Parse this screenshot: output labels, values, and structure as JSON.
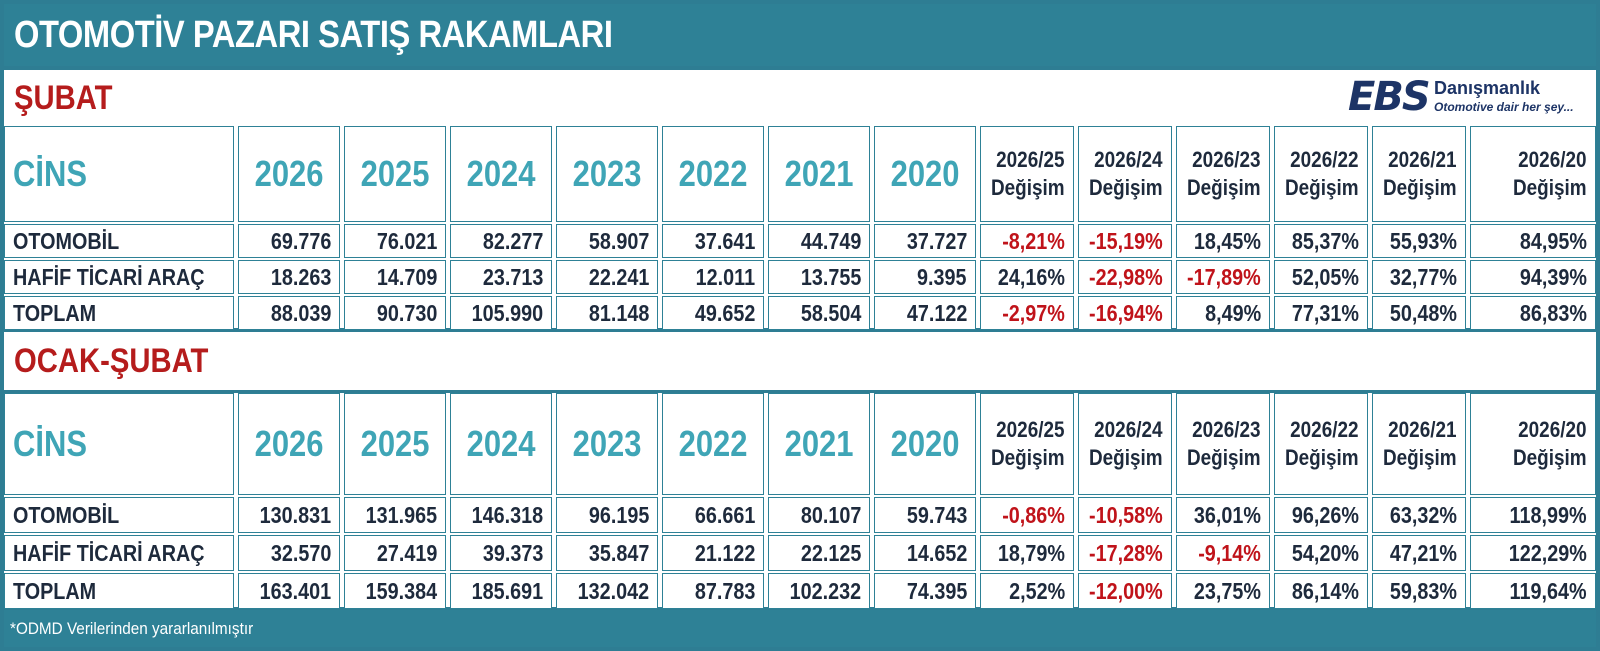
{
  "title": "OTOMOTİV PAZARI SATIŞ RAKAMLARI",
  "logo": {
    "mark": "EBS",
    "name": "Danışmanlık",
    "tagline": "Otomotive dair her şey..."
  },
  "colors": {
    "teal": "#2e8196",
    "header_text": "#3fa5b6",
    "negative": "#c0131a",
    "section_title": "#b51c1c",
    "dark_text": "#1e2a3c"
  },
  "sections": [
    {
      "label": "ŞUBAT",
      "header": {
        "cins": "CİNS",
        "years": [
          "2026",
          "2025",
          "2024",
          "2023",
          "2022",
          "2021",
          "2020"
        ],
        "changes": [
          {
            "period": "2026/25",
            "word": "Değişim"
          },
          {
            "period": "2026/24",
            "word": "Değişim"
          },
          {
            "period": "2026/23",
            "word": "Değişim"
          },
          {
            "period": "2026/22",
            "word": "Değişim"
          },
          {
            "period": "2026/21",
            "word": "Değişim"
          },
          {
            "period": "2026/20",
            "word": "Değişim"
          }
        ]
      },
      "rows": [
        {
          "name": "OTOMOBİL",
          "values": [
            "69.776",
            "76.021",
            "82.277",
            "58.907",
            "37.641",
            "44.749",
            "37.727"
          ],
          "changes": [
            "-8,21%",
            "-15,19%",
            "18,45%",
            "85,37%",
            "55,93%",
            "84,95%"
          ]
        },
        {
          "name": "HAFİF TİCARİ ARAÇ",
          "values": [
            "18.263",
            "14.709",
            "23.713",
            "22.241",
            "12.011",
            "13.755",
            "9.395"
          ],
          "changes": [
            "24,16%",
            "-22,98%",
            "-17,89%",
            "52,05%",
            "32,77%",
            "94,39%"
          ]
        },
        {
          "name": "TOPLAM",
          "values": [
            "88.039",
            "90.730",
            "105.990",
            "81.148",
            "49.652",
            "58.504",
            "47.122"
          ],
          "changes": [
            "-2,97%",
            "-16,94%",
            "8,49%",
            "77,31%",
            "50,48%",
            "86,83%"
          ]
        }
      ]
    },
    {
      "label": "OCAK-ŞUBAT",
      "header": {
        "cins": "CİNS",
        "years": [
          "2026",
          "2025",
          "2024",
          "2023",
          "2022",
          "2021",
          "2020"
        ],
        "changes": [
          {
            "period": "2026/25",
            "word": "Değişim"
          },
          {
            "period": "2026/24",
            "word": "Değişim"
          },
          {
            "period": "2026/23",
            "word": "Değişim"
          },
          {
            "period": "2026/22",
            "word": "Değişim"
          },
          {
            "period": "2026/21",
            "word": "Değişim"
          },
          {
            "period": "2026/20",
            "word": "Değişim"
          }
        ]
      },
      "rows": [
        {
          "name": "OTOMOBİL",
          "values": [
            "130.831",
            "131.965",
            "146.318",
            "96.195",
            "66.661",
            "80.107",
            "59.743"
          ],
          "changes": [
            "-0,86%",
            "-10,58%",
            "36,01%",
            "96,26%",
            "63,32%",
            "118,99%"
          ]
        },
        {
          "name": "HAFİF TİCARİ ARAÇ",
          "values": [
            "32.570",
            "27.419",
            "39.373",
            "35.847",
            "21.122",
            "22.125",
            "14.652"
          ],
          "changes": [
            "18,79%",
            "-17,28%",
            "-9,14%",
            "54,20%",
            "47,21%",
            "122,29%"
          ]
        },
        {
          "name": "TOPLAM",
          "values": [
            "163.401",
            "159.384",
            "185.691",
            "132.042",
            "87.783",
            "102.232",
            "74.395"
          ],
          "changes": [
            "2,52%",
            "-12,00%",
            "23,75%",
            "86,14%",
            "59,83%",
            "119,64%"
          ]
        }
      ]
    }
  ],
  "footer": "*ODMD Verilerinden yararlanılmıştır"
}
